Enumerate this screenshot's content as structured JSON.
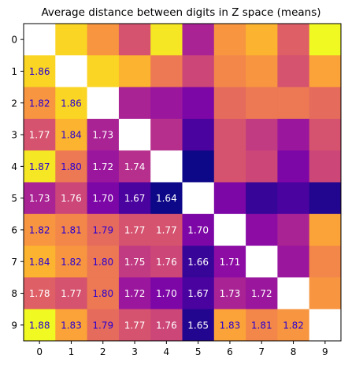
{
  "chart_data": {
    "type": "heatmap",
    "title": "Average distance between digits in Z space (means)",
    "xlabel": "",
    "ylabel": "",
    "x_categories": [
      "0",
      "1",
      "2",
      "3",
      "4",
      "5",
      "6",
      "7",
      "8",
      "9"
    ],
    "y_categories": [
      "0",
      "1",
      "2",
      "3",
      "4",
      "5",
      "6",
      "7",
      "8",
      "9"
    ],
    "colormap": "plasma",
    "value_range": [
      1.64,
      1.88
    ],
    "diagonal": "blank",
    "upper_triangle_mirrors_lower": true,
    "label_colors": {
      "high_values": "#2a00d1",
      "low_values": "#ffffff"
    },
    "values": [
      [
        null,
        1.86,
        1.82,
        1.77,
        1.87,
        1.73,
        1.82,
        1.84,
        1.78,
        1.88
      ],
      [
        1.86,
        null,
        1.86,
        1.84,
        1.8,
        1.76,
        1.81,
        1.82,
        1.77,
        1.83
      ],
      [
        1.82,
        1.86,
        null,
        1.73,
        1.72,
        1.7,
        1.79,
        1.8,
        1.8,
        1.79
      ],
      [
        1.77,
        1.84,
        1.73,
        null,
        1.74,
        1.67,
        1.77,
        1.75,
        1.72,
        1.77
      ],
      [
        1.87,
        1.8,
        1.72,
        1.74,
        null,
        1.64,
        1.77,
        1.76,
        1.7,
        1.76
      ],
      [
        1.73,
        1.76,
        1.7,
        1.67,
        1.64,
        null,
        1.7,
        1.66,
        1.67,
        1.65
      ],
      [
        1.82,
        1.81,
        1.79,
        1.77,
        1.77,
        1.7,
        null,
        1.71,
        1.73,
        1.83
      ],
      [
        1.84,
        1.82,
        1.8,
        1.75,
        1.76,
        1.66,
        1.71,
        null,
        1.72,
        1.81
      ],
      [
        1.78,
        1.77,
        1.8,
        1.72,
        1.7,
        1.67,
        1.73,
        1.72,
        null,
        1.82
      ],
      [
        1.88,
        1.83,
        1.79,
        1.77,
        1.76,
        1.65,
        1.83,
        1.81,
        1.82,
        null
      ]
    ],
    "labels_shown": "lower-triangle"
  }
}
